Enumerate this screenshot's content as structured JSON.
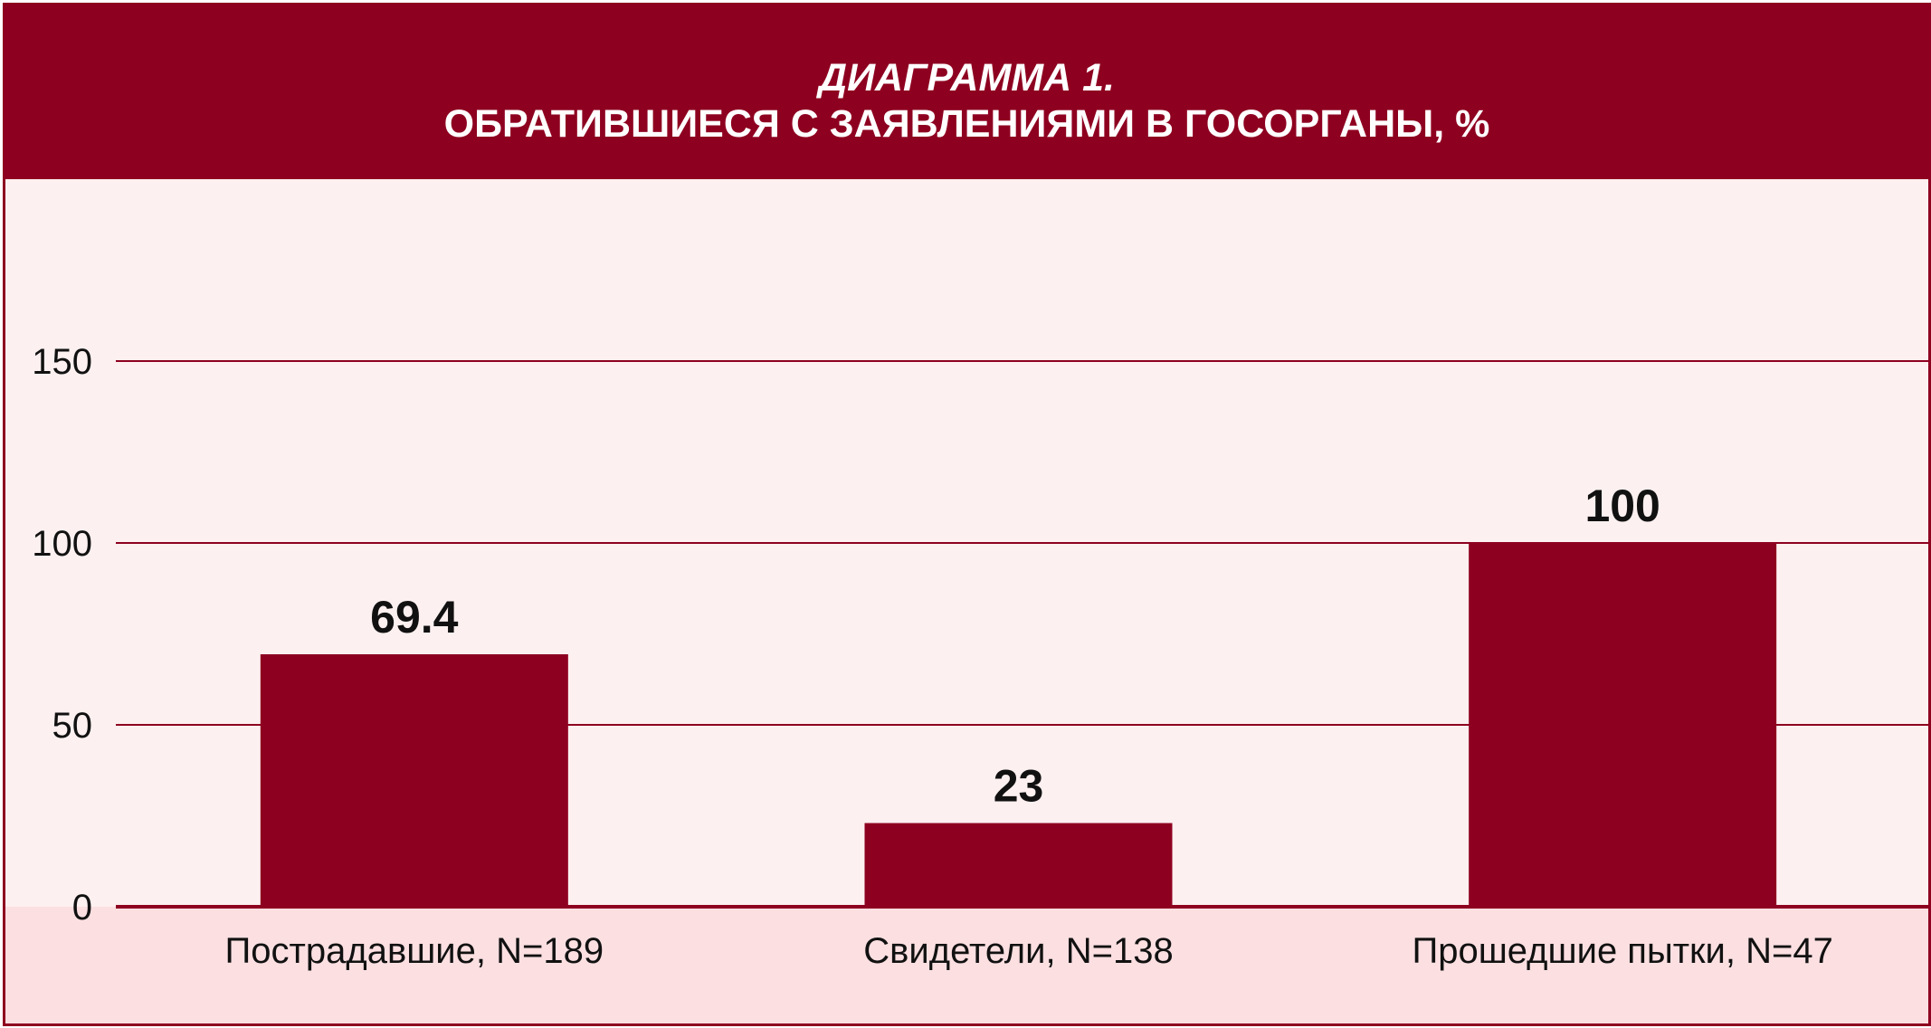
{
  "header": {
    "title_line1": "ДИАГРАММА 1.",
    "title_line2": "ОБРАТИВШИЕСЯ С ЗАЯВЛЕНИЯМИ В ГОСОРГАНЫ, %"
  },
  "colors": {
    "bar": "#8e0020",
    "header_bg": "#8e0020",
    "plot_bg": "#fdf0f0",
    "footer_bg": "#fbdfe1",
    "grid": "#8e0020"
  },
  "chart_data": {
    "type": "bar",
    "title": "ДИАГРАММА 1. ОБРАТИВШИЕСЯ С ЗАЯВЛЕНИЯМИ В ГОСОРГАНЫ, %",
    "categories": [
      "Пострадавшие, N=189",
      "Свидетели, N=138",
      "Прошедшие пытки, N=47"
    ],
    "values": [
      69.4,
      23,
      100
    ],
    "value_labels": [
      "69.4",
      "23",
      "100"
    ],
    "yticks": [
      0,
      50,
      100,
      150
    ],
    "ylim": [
      0,
      150
    ],
    "xlabel": "",
    "ylabel": "",
    "grid": true,
    "legend": "none"
  }
}
